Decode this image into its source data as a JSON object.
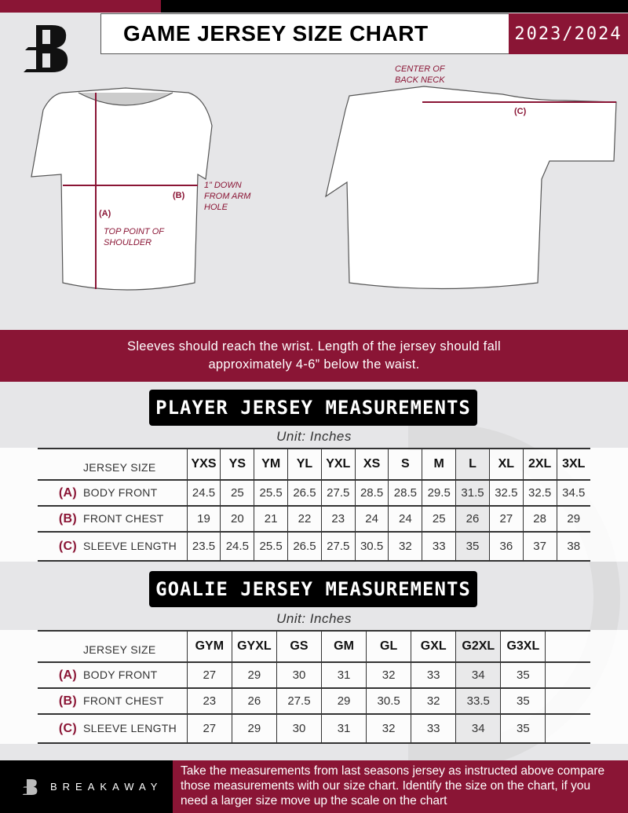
{
  "header": {
    "title": "GAME JERSEY SIZE CHART",
    "season": "2023/2024",
    "logo": "B"
  },
  "diagram": {
    "back_neck_note": "CENTER OF BACK NECK",
    "marker_a": "(A)",
    "marker_b": "(B)",
    "marker_c": "(C)",
    "chest_note": "1” DOWN FROM ARM HOLE",
    "shoulder_note": "TOP POINT OF SHOULDER"
  },
  "banner": {
    "line1": "Sleeves should reach the wrist. Length of the jersey should fall",
    "line2": "approximately 4-6” below the waist."
  },
  "player": {
    "heading": "PLAYER JERSEY MEASUREMENTS",
    "unit": "Unit: Inches",
    "size_label": "JERSEY SIZE",
    "sizes": [
      "YXS",
      "YS",
      "YM",
      "YL",
      "YXL",
      "XS",
      "S",
      "M",
      "L",
      "XL",
      "2XL",
      "3XL"
    ],
    "rows": [
      {
        "code": "(A)",
        "label": "BODY FRONT",
        "values": [
          "24.5",
          "25",
          "25.5",
          "26.5",
          "27.5",
          "28.5",
          "28.5",
          "29.5",
          "31.5",
          "32.5",
          "32.5",
          "34.5"
        ]
      },
      {
        "code": "(B)",
        "label": "FRONT CHEST",
        "values": [
          "19",
          "20",
          "21",
          "22",
          "23",
          "24",
          "24",
          "25",
          "26",
          "27",
          "28",
          "29"
        ]
      },
      {
        "code": "(C)",
        "label": "SLEEVE LENGTH",
        "values": [
          "23.5",
          "24.5",
          "25.5",
          "26.5",
          "27.5",
          "30.5",
          "32",
          "33",
          "35",
          "36",
          "37",
          "38"
        ]
      }
    ]
  },
  "goalie": {
    "heading": "GOALIE JERSEY MEASUREMENTS",
    "unit": "Unit: Inches",
    "size_label": "JERSEY SIZE",
    "sizes": [
      "GYM",
      "GYXL",
      "GS",
      "GM",
      "GL",
      "GXL",
      "G2XL",
      "G3XL",
      ""
    ],
    "rows": [
      {
        "code": "(A)",
        "label": "BODY FRONT",
        "values": [
          "27",
          "29",
          "30",
          "31",
          "32",
          "33",
          "34",
          "35",
          ""
        ]
      },
      {
        "code": "(B)",
        "label": "FRONT CHEST",
        "values": [
          "23",
          "26",
          "27.5",
          "29",
          "30.5",
          "32",
          "33.5",
          "35",
          ""
        ]
      },
      {
        "code": "(C)",
        "label": "SLEEVE LENGTH",
        "values": [
          "27",
          "29",
          "30",
          "31",
          "32",
          "33",
          "34",
          "35",
          ""
        ]
      }
    ]
  },
  "footer": {
    "brand": "BREAKAWAY",
    "text": "Take the measurements from last seasons jersey as instructed above compare those measurements  with our size chart. Identify the size on the chart, if you need a larger size move up the scale on the chart"
  },
  "colors": {
    "accent": "#8a1535",
    "dark": "#000000",
    "background": "#e6e6e8"
  }
}
